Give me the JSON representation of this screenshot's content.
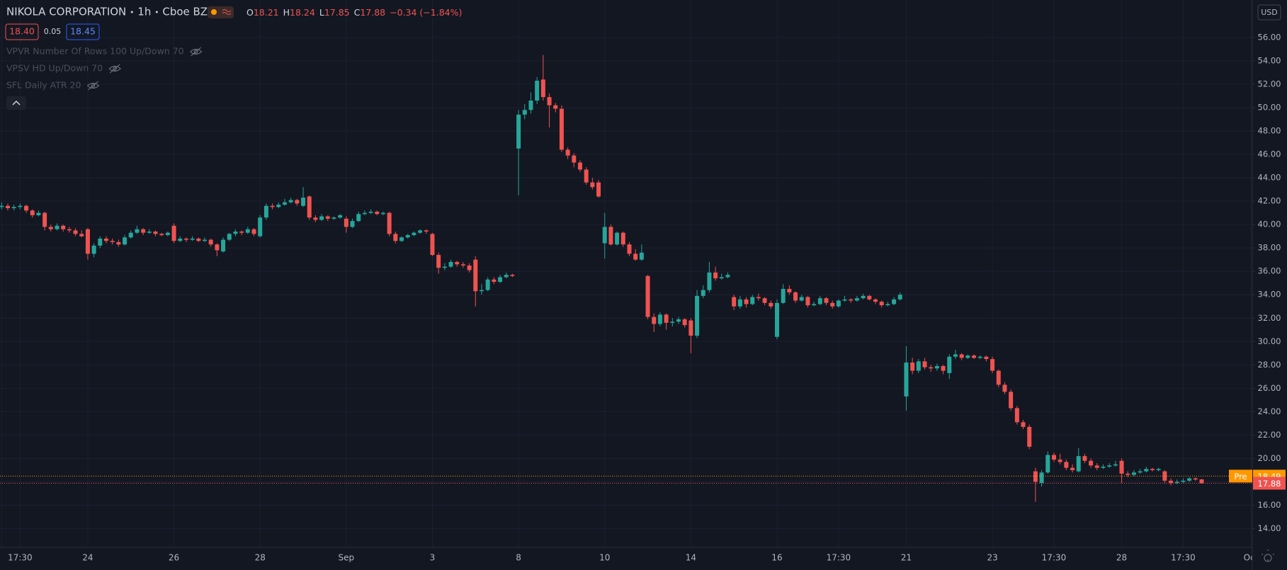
{
  "header": {
    "symbol": "NIKOLA CORPORATION",
    "interval": "1h",
    "exchange": "Cboe BZX",
    "ohlc": [
      {
        "label": "O",
        "value": "18.21"
      },
      {
        "label": "H",
        "value": "18.24"
      },
      {
        "label": "L",
        "value": "17.85"
      },
      {
        "label": "C",
        "value": "17.88"
      }
    ],
    "change": "−0.34 (−1.84%)",
    "bid": "18.40",
    "spread": "0.05",
    "ask": "18.45",
    "indicators": [
      "VPVR Number Of Rows 100 Up/Down 70",
      "VPSV HD Up/Down 70",
      "SFL Daily ATR 20"
    ],
    "currency": "USD"
  },
  "chart_data": {
    "type": "candlestick",
    "up_color": "#26a69a",
    "down_color": "#ef5350",
    "grid": true,
    "categories": [
      "",
      null,
      null,
      "17:30",
      null,
      null,
      null,
      null,
      null,
      null,
      null,
      null,
      null,
      null,
      "24",
      null,
      null,
      null,
      null,
      null,
      null,
      null,
      null,
      null,
      null,
      null,
      null,
      null,
      "26",
      null,
      null,
      null,
      null,
      null,
      null,
      null,
      null,
      null,
      null,
      null,
      null,
      null,
      "28",
      null,
      null,
      null,
      null,
      null,
      null,
      null,
      null,
      null,
      null,
      null,
      null,
      null,
      "Sep",
      null,
      null,
      null,
      null,
      null,
      null,
      null,
      null,
      null,
      null,
      null,
      null,
      null,
      "3",
      null,
      null,
      null,
      null,
      null,
      null,
      null,
      null,
      null,
      null,
      null,
      null,
      null,
      "8",
      null,
      null,
      null,
      null,
      null,
      null,
      null,
      null,
      null,
      null,
      null,
      null,
      null,
      "10",
      null,
      null,
      null,
      null,
      null,
      null,
      null,
      null,
      null,
      null,
      null,
      null,
      null,
      "14",
      null,
      null,
      null,
      null,
      null,
      null,
      null,
      null,
      null,
      null,
      null,
      null,
      null,
      "16",
      null,
      null,
      null,
      null,
      null,
      null,
      null,
      null,
      null,
      "17:30",
      null,
      null,
      null,
      null,
      null,
      null,
      null,
      null,
      null,
      null,
      "21",
      null,
      null,
      null,
      null,
      null,
      null,
      null,
      null,
      null,
      null,
      null,
      null,
      null,
      "23",
      null,
      null,
      null,
      null,
      null,
      null,
      null,
      null,
      null,
      "17:30",
      null,
      null,
      null,
      null,
      null,
      null,
      null,
      null,
      null,
      null,
      "28",
      null,
      null,
      null,
      null,
      null,
      null,
      null,
      null,
      null,
      "17:30",
      null,
      null,
      null,
      null,
      null,
      null,
      null,
      null,
      null,
      null,
      "Oct"
    ],
    "ohlc": [
      [
        41.5,
        41.9,
        41.3,
        41.6
      ],
      [
        41.6,
        41.8,
        41.2,
        41.4
      ],
      [
        41.4,
        41.7,
        41.2,
        41.5
      ],
      [
        41.5,
        41.8,
        41.3,
        41.6
      ],
      [
        41.6,
        41.7,
        41.0,
        41.2
      ],
      [
        41.2,
        41.3,
        40.6,
        40.8
      ],
      [
        40.8,
        41.2,
        40.7,
        41.0
      ],
      [
        41.0,
        41.1,
        39.5,
        39.8
      ],
      [
        39.8,
        40.0,
        39.4,
        39.6
      ],
      [
        39.6,
        40.1,
        39.5,
        39.9
      ],
      [
        39.9,
        40.0,
        39.4,
        39.6
      ],
      [
        39.6,
        39.8,
        39.3,
        39.5
      ],
      [
        39.5,
        39.7,
        39.0,
        39.2
      ],
      [
        39.2,
        39.5,
        38.9,
        39.0
      ],
      [
        39.6,
        39.7,
        37.0,
        37.5
      ],
      [
        37.5,
        38.4,
        37.2,
        38.2
      ],
      [
        38.2,
        39.0,
        38.0,
        38.8
      ],
      [
        38.8,
        39.0,
        38.4,
        38.6
      ],
      [
        38.6,
        38.8,
        38.3,
        38.5
      ],
      [
        38.5,
        38.7,
        38.1,
        38.3
      ],
      [
        38.3,
        39.1,
        38.2,
        38.9
      ],
      [
        38.9,
        39.5,
        38.8,
        39.3
      ],
      [
        39.3,
        39.9,
        39.2,
        39.6
      ],
      [
        39.6,
        39.7,
        39.1,
        39.3
      ],
      [
        39.3,
        39.6,
        39.2,
        39.4
      ],
      [
        39.4,
        39.5,
        39.0,
        39.2
      ],
      [
        39.2,
        39.3,
        39.0,
        39.1
      ],
      [
        39.1,
        39.4,
        39.0,
        39.3
      ],
      [
        39.9,
        40.1,
        38.4,
        38.6
      ],
      [
        38.6,
        39.0,
        38.5,
        38.8
      ],
      [
        38.8,
        38.9,
        38.5,
        38.7
      ],
      [
        38.7,
        39.0,
        38.6,
        38.8
      ],
      [
        38.8,
        38.9,
        38.5,
        38.6
      ],
      [
        38.6,
        38.9,
        38.5,
        38.7
      ],
      [
        38.7,
        38.8,
        38.1,
        38.3
      ],
      [
        38.3,
        38.4,
        37.3,
        37.8
      ],
      [
        37.7,
        38.9,
        37.6,
        38.7
      ],
      [
        38.7,
        39.3,
        38.6,
        39.2
      ],
      [
        39.2,
        39.6,
        39.0,
        39.4
      ],
      [
        39.4,
        39.5,
        39.1,
        39.3
      ],
      [
        39.3,
        39.8,
        39.2,
        39.6
      ],
      [
        39.6,
        39.7,
        39.0,
        39.2
      ],
      [
        39.0,
        40.8,
        38.9,
        40.6
      ],
      [
        40.6,
        41.8,
        40.4,
        41.6
      ],
      [
        41.6,
        41.8,
        41.3,
        41.5
      ],
      [
        41.5,
        41.9,
        41.4,
        41.7
      ],
      [
        41.7,
        42.2,
        41.6,
        41.9
      ],
      [
        41.9,
        42.3,
        41.8,
        42.1
      ],
      [
        42.1,
        42.2,
        41.6,
        41.8
      ],
      [
        41.6,
        43.2,
        41.5,
        42.3
      ],
      [
        42.4,
        42.5,
        40.4,
        40.6
      ],
      [
        40.6,
        40.8,
        40.2,
        40.4
      ],
      [
        40.4,
        40.9,
        40.3,
        40.7
      ],
      [
        40.7,
        40.8,
        40.3,
        40.5
      ],
      [
        40.5,
        40.7,
        40.4,
        40.6
      ],
      [
        40.6,
        40.9,
        40.5,
        40.8
      ],
      [
        40.5,
        40.7,
        39.3,
        39.8
      ],
      [
        39.8,
        40.5,
        39.7,
        40.3
      ],
      [
        40.3,
        41.1,
        40.2,
        40.9
      ],
      [
        40.9,
        41.2,
        40.8,
        41.0
      ],
      [
        41.0,
        41.3,
        40.9,
        41.1
      ],
      [
        41.1,
        41.2,
        40.8,
        40.9
      ],
      [
        40.9,
        41.1,
        40.8,
        41.0
      ],
      [
        41.0,
        41.1,
        39.0,
        39.2
      ],
      [
        39.2,
        39.4,
        38.4,
        38.6
      ],
      [
        38.6,
        39.0,
        38.5,
        38.9
      ],
      [
        38.9,
        39.2,
        38.8,
        39.1
      ],
      [
        39.1,
        39.4,
        39.0,
        39.3
      ],
      [
        39.3,
        39.6,
        39.2,
        39.5
      ],
      [
        39.5,
        39.6,
        39.2,
        39.4
      ],
      [
        39.2,
        39.3,
        37.3,
        37.4
      ],
      [
        37.4,
        37.6,
        35.8,
        36.3
      ],
      [
        36.3,
        36.7,
        36.1,
        36.4
      ],
      [
        36.4,
        37.0,
        36.3,
        36.8
      ],
      [
        36.8,
        36.9,
        36.4,
        36.6
      ],
      [
        36.6,
        36.8,
        36.3,
        36.5
      ],
      [
        36.5,
        36.7,
        35.9,
        36.1
      ],
      [
        37.0,
        37.3,
        33.0,
        34.3
      ],
      [
        34.3,
        34.9,
        34.0,
        34.4
      ],
      [
        34.4,
        35.5,
        34.3,
        35.3
      ],
      [
        35.3,
        35.5,
        34.9,
        35.1
      ],
      [
        35.1,
        35.7,
        35.0,
        35.5
      ],
      [
        35.5,
        35.9,
        35.4,
        35.7
      ],
      [
        35.7,
        35.8,
        35.5,
        35.6
      ],
      [
        46.5,
        49.8,
        42.5,
        49.4
      ],
      [
        49.4,
        50.3,
        49.0,
        49.8
      ],
      [
        49.8,
        51.3,
        49.5,
        50.6
      ],
      [
        50.6,
        52.6,
        50.3,
        52.3
      ],
      [
        52.4,
        54.5,
        50.6,
        50.9
      ],
      [
        50.9,
        51.2,
        48.3,
        50.2
      ],
      [
        50.2,
        50.4,
        49.6,
        49.9
      ],
      [
        49.9,
        50.2,
        46.2,
        46.4
      ],
      [
        46.4,
        46.6,
        45.6,
        45.9
      ],
      [
        45.9,
        46.1,
        44.9,
        45.3
      ],
      [
        45.3,
        45.5,
        44.5,
        44.7
      ],
      [
        44.7,
        44.9,
        43.4,
        43.6
      ],
      [
        43.6,
        44.0,
        43.0,
        43.2
      ],
      [
        43.6,
        43.8,
        42.3,
        42.4
      ],
      [
        38.4,
        41.0,
        37.1,
        39.8
      ],
      [
        39.8,
        40.0,
        38.2,
        38.3
      ],
      [
        38.3,
        39.4,
        38.2,
        39.3
      ],
      [
        39.3,
        39.4,
        38.1,
        38.3
      ],
      [
        38.3,
        38.5,
        37.3,
        37.5
      ],
      [
        37.5,
        37.9,
        36.9,
        37.0
      ],
      [
        37.0,
        38.3,
        36.9,
        37.6
      ],
      [
        35.6,
        35.7,
        31.9,
        32.1
      ],
      [
        32.1,
        32.4,
        30.8,
        31.5
      ],
      [
        31.5,
        32.5,
        31.3,
        32.3
      ],
      [
        32.3,
        32.4,
        31.0,
        31.6
      ],
      [
        31.6,
        32.0,
        31.3,
        31.7
      ],
      [
        31.7,
        32.1,
        31.5,
        31.9
      ],
      [
        31.9,
        32.0,
        31.2,
        31.4
      ],
      [
        31.8,
        32.0,
        29.0,
        30.5
      ],
      [
        30.5,
        34.4,
        30.3,
        33.9
      ],
      [
        33.9,
        34.8,
        33.7,
        34.4
      ],
      [
        34.4,
        36.8,
        34.2,
        35.9
      ],
      [
        35.9,
        36.4,
        35.2,
        35.4
      ],
      [
        35.4,
        35.8,
        35.3,
        35.5
      ],
      [
        35.5,
        35.9,
        35.4,
        35.7
      ],
      [
        33.8,
        34.0,
        32.7,
        33.0
      ],
      [
        33.0,
        33.9,
        32.8,
        33.6
      ],
      [
        33.6,
        33.8,
        32.9,
        33.2
      ],
      [
        33.2,
        34.0,
        33.1,
        33.8
      ],
      [
        33.8,
        34.1,
        33.5,
        33.7
      ],
      [
        33.7,
        33.8,
        33.1,
        33.3
      ],
      [
        33.3,
        33.5,
        32.8,
        33.0
      ],
      [
        30.4,
        33.6,
        30.2,
        33.3
      ],
      [
        33.3,
        34.9,
        33.2,
        34.5
      ],
      [
        34.5,
        34.8,
        34.0,
        34.2
      ],
      [
        34.2,
        34.3,
        33.3,
        33.5
      ],
      [
        33.5,
        34.0,
        33.4,
        33.8
      ],
      [
        33.8,
        33.9,
        32.9,
        33.1
      ],
      [
        33.1,
        33.4,
        33.0,
        33.2
      ],
      [
        33.2,
        33.9,
        33.1,
        33.7
      ],
      [
        33.7,
        33.8,
        33.1,
        33.3
      ],
      [
        33.3,
        33.5,
        32.8,
        33.0
      ],
      [
        33.0,
        33.6,
        32.9,
        33.5
      ],
      [
        33.5,
        33.9,
        33.4,
        33.6
      ],
      [
        33.6,
        33.7,
        33.3,
        33.5
      ],
      [
        33.5,
        33.9,
        33.4,
        33.7
      ],
      [
        33.7,
        34.1,
        33.6,
        33.9
      ],
      [
        33.9,
        34.0,
        33.5,
        33.6
      ],
      [
        33.6,
        33.7,
        33.2,
        33.4
      ],
      [
        33.4,
        33.5,
        32.9,
        33.1
      ],
      [
        33.1,
        33.4,
        33.0,
        33.2
      ],
      [
        33.2,
        33.8,
        33.1,
        33.6
      ],
      [
        33.6,
        34.2,
        33.5,
        34.0
      ],
      [
        25.3,
        29.6,
        24.1,
        28.2
      ],
      [
        28.2,
        28.6,
        27.2,
        27.5
      ],
      [
        27.5,
        28.5,
        27.3,
        28.3
      ],
      [
        28.3,
        28.6,
        27.6,
        27.8
      ],
      [
        27.8,
        28.0,
        27.4,
        27.7
      ],
      [
        27.7,
        28.1,
        27.5,
        27.9
      ],
      [
        27.9,
        28.0,
        27.2,
        27.5
      ],
      [
        27.3,
        28.9,
        26.8,
        28.7
      ],
      [
        28.7,
        29.3,
        28.5,
        28.9
      ],
      [
        28.9,
        29.0,
        28.4,
        28.6
      ],
      [
        28.6,
        28.9,
        28.5,
        28.8
      ],
      [
        28.8,
        28.9,
        28.5,
        28.6
      ],
      [
        28.6,
        28.8,
        28.5,
        28.7
      ],
      [
        28.7,
        28.8,
        28.3,
        28.5
      ],
      [
        28.5,
        28.7,
        27.3,
        27.5
      ],
      [
        27.5,
        27.6,
        26.1,
        26.3
      ],
      [
        26.3,
        26.5,
        25.5,
        25.7
      ],
      [
        25.7,
        25.9,
        24.1,
        24.3
      ],
      [
        24.3,
        24.5,
        22.9,
        23.1
      ],
      [
        23.1,
        23.3,
        22.5,
        22.7
      ],
      [
        22.7,
        22.9,
        20.8,
        21.0
      ],
      [
        18.9,
        19.2,
        16.3,
        18.0
      ],
      [
        17.9,
        19.0,
        17.6,
        18.8
      ],
      [
        18.8,
        20.6,
        18.7,
        20.3
      ],
      [
        20.3,
        20.5,
        19.7,
        19.9
      ],
      [
        19.9,
        20.4,
        19.5,
        19.7
      ],
      [
        19.7,
        19.9,
        19.0,
        19.2
      ],
      [
        19.2,
        19.5,
        18.8,
        19.0
      ],
      [
        18.9,
        20.9,
        18.8,
        20.2
      ],
      [
        20.2,
        20.4,
        19.6,
        19.8
      ],
      [
        19.8,
        20.0,
        19.2,
        19.4
      ],
      [
        19.4,
        19.6,
        19.0,
        19.2
      ],
      [
        19.2,
        19.5,
        19.1,
        19.3
      ],
      [
        19.3,
        19.6,
        19.2,
        19.4
      ],
      [
        19.4,
        19.8,
        19.3,
        19.5
      ],
      [
        19.8,
        20.0,
        17.9,
        18.7
      ],
      [
        18.7,
        18.9,
        18.4,
        18.6
      ],
      [
        18.6,
        19.0,
        18.5,
        18.8
      ],
      [
        18.8,
        19.1,
        18.7,
        18.9
      ],
      [
        18.9,
        19.3,
        18.8,
        19.1
      ],
      [
        19.1,
        19.2,
        18.9,
        19.0
      ],
      [
        19.0,
        19.2,
        18.9,
        19.1
      ],
      [
        18.9,
        19.0,
        17.9,
        18.1
      ],
      [
        18.1,
        18.3,
        17.7,
        17.9
      ],
      [
        17.9,
        18.2,
        17.8,
        18.0
      ],
      [
        18.0,
        18.3,
        17.9,
        18.1
      ],
      [
        18.1,
        18.4,
        18.0,
        18.3
      ],
      [
        18.3,
        18.4,
        18.1,
        18.2
      ],
      [
        18.21,
        18.24,
        17.85,
        17.88
      ],
      null,
      null,
      null,
      null,
      null,
      null,
      null,
      null
    ],
    "ylim": [
      12.4,
      59.2
    ],
    "yticks": [
      {
        "value": 14,
        "label": "14.00"
      },
      {
        "value": 16,
        "label": "16.00"
      },
      {
        "value": 18,
        "label": "18.00"
      },
      {
        "value": 20,
        "label": "20.00"
      },
      {
        "value": 22,
        "label": "22.00"
      },
      {
        "value": 24,
        "label": "24.00"
      },
      {
        "value": 26,
        "label": "26.00"
      },
      {
        "value": 28,
        "label": "28.00"
      },
      {
        "value": 30,
        "label": "30.00"
      },
      {
        "value": 32,
        "label": "32.00"
      },
      {
        "value": 34,
        "label": "34.00"
      },
      {
        "value": 36,
        "label": "36.00"
      },
      {
        "value": 38,
        "label": "38.00"
      },
      {
        "value": 40,
        "label": "40.00"
      },
      {
        "value": 42,
        "label": "42.00"
      },
      {
        "value": 44,
        "label": "44.00"
      },
      {
        "value": 46,
        "label": "46.00"
      },
      {
        "value": 48,
        "label": "48.00"
      },
      {
        "value": 50,
        "label": "50.00"
      },
      {
        "value": 52,
        "label": "52.00"
      },
      {
        "value": 54,
        "label": "54.00"
      },
      {
        "value": 56,
        "label": "56.00"
      }
    ],
    "price_lines": [
      {
        "name": "Pre",
        "value": 18.49,
        "color": "#ff9800"
      },
      {
        "value": 17.88,
        "color": "#ef5350"
      }
    ]
  }
}
